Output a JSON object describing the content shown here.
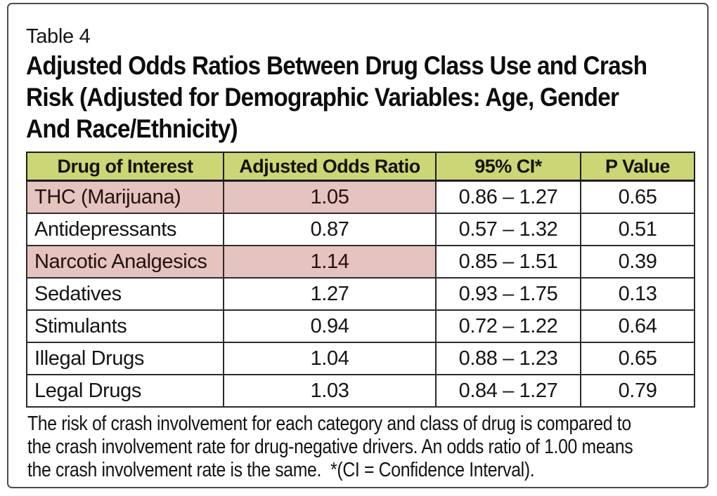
{
  "table_label": "Table 4",
  "title_lines": [
    "Adjusted Odds Ratios Between Drug Class Use and Crash",
    "Risk (Adjusted for Demographic Variables: Age, Gender",
    "And Race/Ethnicity)"
  ],
  "colors": {
    "header_bg": "#ccd677",
    "highlight_bg": "#e5c3be",
    "table_border": "#1d1d1d",
    "frame_border": "#4c4c4c"
  },
  "table": {
    "columns": [
      "Drug of Interest",
      "Adjusted Odds Ratio",
      "95% CI*",
      "P Value"
    ],
    "rows": [
      {
        "drug": "THC (Marijuana)",
        "odds": "1.05",
        "ci": "0.86 – 1.27",
        "p": "0.65",
        "highlighted": true
      },
      {
        "drug": "Antidepressants",
        "odds": "0.87",
        "ci": "0.57 – 1.32",
        "p": "0.51",
        "highlighted": false
      },
      {
        "drug": "Narcotic Analgesics",
        "odds": "1.14",
        "ci": "0.85 – 1.51",
        "p": "0.39",
        "highlighted": true
      },
      {
        "drug": "Sedatives",
        "odds": "1.27",
        "ci": "0.93 – 1.75",
        "p": "0.13",
        "highlighted": false
      },
      {
        "drug": "Stimulants",
        "odds": "0.94",
        "ci": "0.72 – 1.22",
        "p": "0.64",
        "highlighted": false
      },
      {
        "drug": "Illegal Drugs",
        "odds": "1.04",
        "ci": "0.88 – 1.23",
        "p": "0.65",
        "highlighted": false
      },
      {
        "drug": "Legal Drugs",
        "odds": "1.03",
        "ci": "0.84 – 1.27",
        "p": "0.79",
        "highlighted": false
      }
    ]
  },
  "footnote_lines": [
    "The risk of crash involvement for each category and class of drug is compared to",
    "the crash involvement rate for drug-negative drivers. An odds ratio of 1.00 means",
    "the crash involvement rate is the same.  *(CI = Confidence Interval)."
  ]
}
